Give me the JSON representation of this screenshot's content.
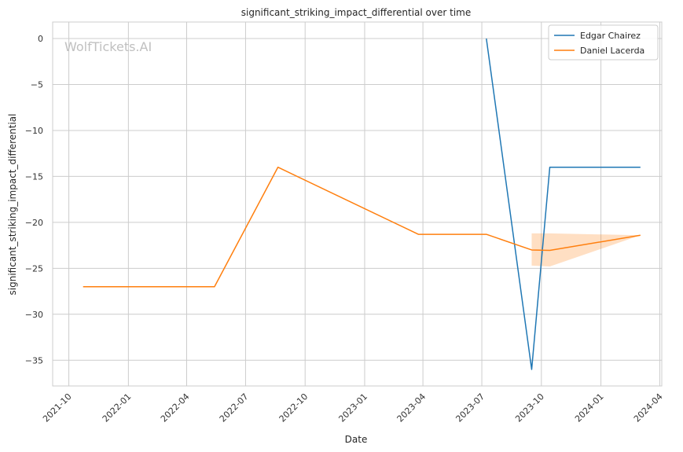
{
  "chart_data": {
    "type": "line",
    "title": "significant_striking_impact_differential over time",
    "xlabel": "Date",
    "ylabel": "significant_striking_impact_differential",
    "watermark": "WolfTickets.AI",
    "x_ticks": [
      "2021-10",
      "2022-01",
      "2022-04",
      "2022-07",
      "2022-10",
      "2023-01",
      "2023-04",
      "2023-07",
      "2023-10",
      "2024-01",
      "2024-04"
    ],
    "y_ticks": [
      0,
      -5,
      -10,
      -15,
      -20,
      -25,
      -30,
      -35
    ],
    "xlim": [
      "2021-09-06",
      "2024-04-04"
    ],
    "ylim": [
      -37.8,
      1.8
    ],
    "grid": true,
    "legend_position": "top-right",
    "series": [
      {
        "name": "Edgar Chairez",
        "color": "#1f77b4",
        "points": [
          {
            "x": "2023-07-08",
            "y": 0
          },
          {
            "x": "2023-09-16",
            "y": -36
          },
          {
            "x": "2023-10-14",
            "y": -14
          },
          {
            "x": "2024-03-02",
            "y": -14
          }
        ]
      },
      {
        "name": "Daniel Lacerda",
        "color": "#ff7f0e",
        "points": [
          {
            "x": "2021-10-23",
            "y": -27
          },
          {
            "x": "2022-05-14",
            "y": -27
          },
          {
            "x": "2022-08-20",
            "y": -14
          },
          {
            "x": "2023-03-25",
            "y": -21.3
          },
          {
            "x": "2023-07-08",
            "y": -21.3
          },
          {
            "x": "2023-09-16",
            "y": -23
          },
          {
            "x": "2023-10-14",
            "y": -23.05
          },
          {
            "x": "2024-03-02",
            "y": -21.4
          }
        ],
        "band": [
          {
            "x": "2023-09-16",
            "lower": -24.7,
            "upper": -21.2
          },
          {
            "x": "2023-10-14",
            "lower": -24.8,
            "upper": -21.2
          },
          {
            "x": "2024-03-02",
            "lower": -21.4,
            "upper": -21.4
          }
        ]
      }
    ]
  }
}
